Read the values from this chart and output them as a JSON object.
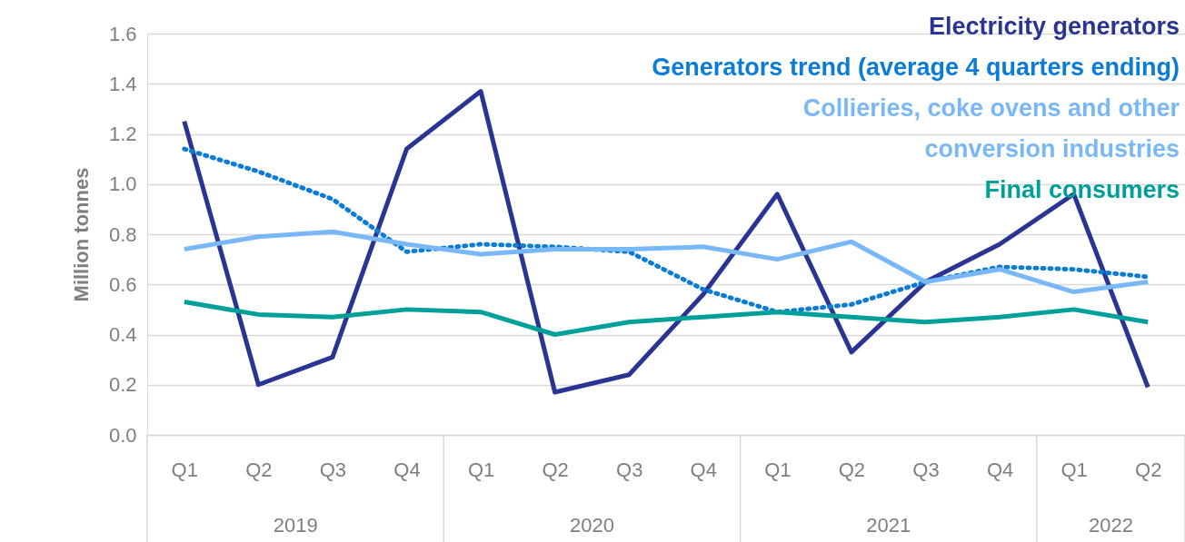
{
  "chart_data": {
    "type": "line",
    "categories": [
      "Q1",
      "Q2",
      "Q3",
      "Q4",
      "Q1",
      "Q2",
      "Q3",
      "Q4",
      "Q1",
      "Q2",
      "Q3",
      "Q4",
      "Q1",
      "Q2"
    ],
    "ylabel": "Million tonnes",
    "ylim": [
      0,
      1.6
    ],
    "yticks": [
      {
        "value": 0,
        "label": "0.0"
      },
      {
        "value": 0.2,
        "label": "0.2"
      },
      {
        "value": 0.4,
        "label": "0.4"
      },
      {
        "value": 0.6,
        "label": "0.6"
      },
      {
        "value": 0.8,
        "label": "0.8"
      },
      {
        "value": 1,
        "label": "1.0"
      },
      {
        "value": 1.2,
        "label": "1.2"
      },
      {
        "value": 1.4,
        "label": "1.4"
      },
      {
        "value": 1.6,
        "label": "1.6"
      }
    ],
    "grid": "y",
    "legend": "top right",
    "marker": "none",
    "series": [
      {
        "name": "Electricity generators",
        "color": "#2a3593",
        "line_style": "solid",
        "values": [
          1.25,
          0.2,
          0.31,
          1.14,
          1.37,
          0.17,
          0.24,
          0.56,
          0.96,
          0.33,
          0.61,
          0.76,
          0.96,
          0.19
        ]
      },
      {
        "name": "Generators trend (average 4 quarters ending)",
        "color": "#0a7bd6",
        "line_style": "dotted",
        "values": [
          1.14,
          1.05,
          0.94,
          0.73,
          0.76,
          0.75,
          0.73,
          0.58,
          0.49,
          0.52,
          0.61,
          0.67,
          0.66,
          0.63
        ]
      },
      {
        "name": "Collieries, coke ovens and other conversion industries",
        "color": "#79b8f8",
        "line_style": "solid",
        "values": [
          0.74,
          0.79,
          0.81,
          0.76,
          0.72,
          0.74,
          0.74,
          0.75,
          0.7,
          0.77,
          0.61,
          0.66,
          0.57,
          0.61
        ]
      },
      {
        "name": "Final consumers",
        "color": "#00a09a",
        "line_style": "solid",
        "values": [
          0.53,
          0.48,
          0.47,
          0.5,
          0.49,
          0.4,
          0.45,
          0.47,
          0.49,
          0.47,
          0.45,
          0.47,
          0.5,
          0.45
        ]
      }
    ],
    "annotations": [
      "2019",
      "2020",
      "2021",
      "2022"
    ]
  }
}
